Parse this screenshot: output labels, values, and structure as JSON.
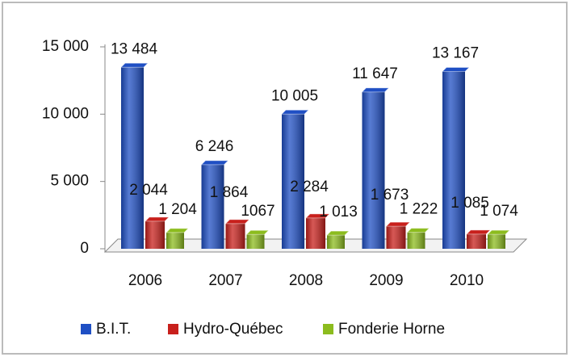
{
  "chart_data": {
    "type": "bar",
    "categories": [
      "2006",
      "2007",
      "2008",
      "2009",
      "2010"
    ],
    "series": [
      {
        "name": "B.I.T.",
        "color": "#1f4fc4",
        "values": [
          13484,
          6246,
          10005,
          11647,
          13167
        ],
        "value_labels": [
          "13 484",
          "6 246",
          "10 005",
          "11 647",
          "13 167"
        ]
      },
      {
        "name": "Hydro-Québec",
        "color": "#c8201c",
        "values": [
          2044,
          1864,
          2284,
          1673,
          1085
        ],
        "value_labels": [
          "2 044",
          "1 864",
          "2 284",
          "1 673",
          "1 085"
        ]
      },
      {
        "name": "Fonderie Horne",
        "color": "#8cbc1e",
        "values": [
          1204,
          1067,
          1013,
          1222,
          1074
        ],
        "value_labels": [
          "1 204",
          "1067",
          "1 013",
          "1 222",
          "1 074"
        ]
      }
    ],
    "ylim": [
      0,
      15000
    ],
    "yticks": [
      {
        "value": 0,
        "label": "0"
      },
      {
        "value": 5000,
        "label": "5 000"
      },
      {
        "value": 10000,
        "label": "10 000"
      },
      {
        "value": 15000,
        "label": "15 000"
      }
    ],
    "legend": "bottom"
  }
}
